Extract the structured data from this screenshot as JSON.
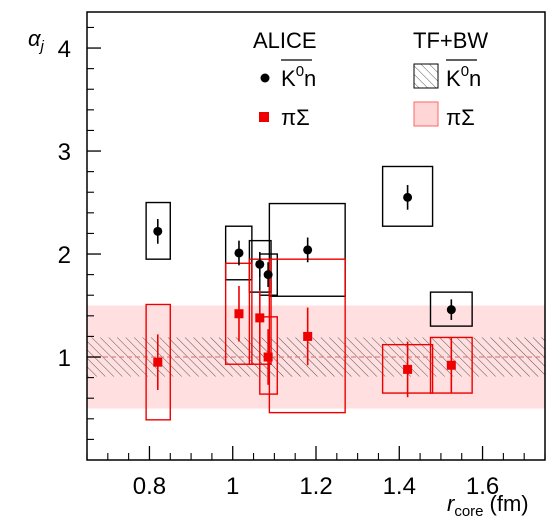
{
  "chart_data": {
    "type": "scatter",
    "xlabel_main": "r",
    "xlabel_sub": "core",
    "xlabel_unit": "(fm)",
    "ylabel_main": "α",
    "ylabel_sub": "j",
    "xlim": [
      0.65,
      1.75
    ],
    "ylim": [
      0,
      4.35
    ],
    "x_ticks": [
      0.8,
      1.0,
      1.2,
      1.4,
      1.6
    ],
    "x_tick_labels": [
      "0.8",
      "1",
      "1.2",
      "1.4",
      "1.6"
    ],
    "y_ticks": [
      1,
      2,
      3,
      4
    ],
    "y_tick_labels": [
      "1",
      "2",
      "3",
      "4"
    ],
    "legend": {
      "left_header": "ALICE",
      "right_header": "TF+BW",
      "k0n_label": "K",
      "k0n_sup": "0",
      "k0n_suffix": "n",
      "pisigma_label": "πΣ"
    },
    "bands": [
      {
        "name": "K0n",
        "center": 1.0,
        "half_width": 0.19,
        "color": "#444444"
      },
      {
        "name": "piSigma",
        "center": 1.0,
        "half_width": 0.5,
        "color": "#ff9999"
      }
    ],
    "series": [
      {
        "name": "K0n",
        "color": "#000000",
        "marker": "circle",
        "points": [
          {
            "x": 0.82,
            "y": 2.22,
            "err": 0.12,
            "sys_x": [
              0.792,
              0.85
            ],
            "sys_y": [
              1.95,
              2.5
            ]
          },
          {
            "x": 1.015,
            "y": 2.01,
            "err": 0.12,
            "sys_x": [
              0.983,
              1.046
            ],
            "sys_y": [
              1.75,
              2.27
            ]
          },
          {
            "x": 1.065,
            "y": 1.9,
            "err": 0.12,
            "sys_x": [
              1.04,
              1.092
            ],
            "sys_y": [
              1.63,
              2.13
            ]
          },
          {
            "x": 1.085,
            "y": 1.8,
            "err": 0.12,
            "sys_x": [
              1.065,
              1.107
            ],
            "sys_y": [
              1.6,
              2.0
            ]
          },
          {
            "x": 1.18,
            "y": 2.04,
            "err": 0.12,
            "sys_x": [
              1.088,
              1.27
            ],
            "sys_y": [
              1.59,
              2.49
            ]
          },
          {
            "x": 1.42,
            "y": 2.55,
            "err": 0.12,
            "sys_x": [
              1.36,
              1.48
            ],
            "sys_y": [
              2.27,
              2.85
            ]
          },
          {
            "x": 1.525,
            "y": 1.46,
            "err": 0.1,
            "sys_x": [
              1.475,
              1.575
            ],
            "sys_y": [
              1.3,
              1.63
            ]
          }
        ]
      },
      {
        "name": "piSigma",
        "color": "#ee0000",
        "marker": "square",
        "points": [
          {
            "x": 0.82,
            "y": 0.95,
            "err": 0.27,
            "sys_x": [
              0.792,
              0.85
            ],
            "sys_y": [
              0.39,
              1.51
            ]
          },
          {
            "x": 1.015,
            "y": 1.42,
            "err": 0.27,
            "sys_x": [
              0.983,
              1.046
            ],
            "sys_y": [
              0.93,
              1.91
            ]
          },
          {
            "x": 1.065,
            "y": 1.38,
            "err": 0.27,
            "sys_x": [
              1.04,
              1.092
            ],
            "sys_y": [
              0.93,
              1.95
            ]
          },
          {
            "x": 1.085,
            "y": 1.0,
            "err": 0.27,
            "sys_x": [
              1.065,
              1.107
            ],
            "sys_y": [
              0.64,
              1.39
            ]
          },
          {
            "x": 1.18,
            "y": 1.2,
            "err": 0.28,
            "sys_x": [
              1.088,
              1.27
            ],
            "sys_y": [
              0.46,
              1.95
            ]
          },
          {
            "x": 1.42,
            "y": 0.88,
            "err": 0.27,
            "sys_x": [
              1.36,
              1.48
            ],
            "sys_y": [
              0.65,
              1.12
            ]
          },
          {
            "x": 1.525,
            "y": 0.92,
            "err": 0.27,
            "sys_x": [
              1.475,
              1.575
            ],
            "sys_y": [
              0.65,
              1.19
            ]
          }
        ]
      }
    ]
  }
}
